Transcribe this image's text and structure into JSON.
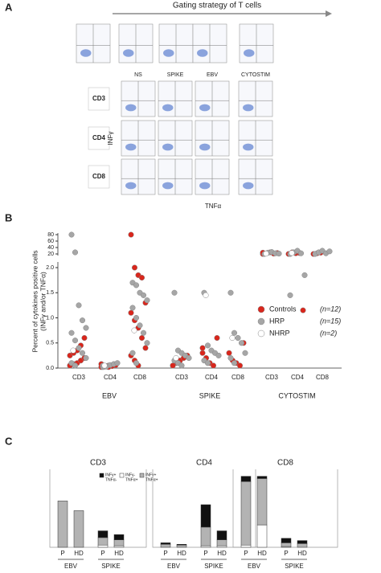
{
  "panel_labels": [
    "A",
    "B",
    "C"
  ],
  "panel_a": {
    "title": "Gating strategy of T cells",
    "columns": [
      "NS",
      "SPIKE",
      "EBV",
      "CYTOSTIM"
    ],
    "rows": [
      "CD3",
      "CD4",
      "CD8"
    ],
    "y_label": "INFγ",
    "x_label": "TNFα"
  },
  "bar_legend": [
    {
      "name": [
        "INFγ+",
        "TNFα-"
      ],
      "color": "#111111"
    },
    {
      "name": [
        "INFγ-",
        "TNFα+"
      ],
      "color": "#ffffff"
    },
    {
      "name": [
        "INFγ+",
        "TNFα+"
      ],
      "color": "#b3b3b3"
    }
  ],
  "chart_data": [
    {
      "type": "scatter",
      "y_label": [
        "Percent of cytokines positive cells",
        "(INFγ and/or TNFα)"
      ],
      "categories": [
        "CD3",
        "CD4",
        "CD8",
        "CD3",
        "CD4",
        "CD8",
        "CD3",
        "CD4",
        "CD8"
      ],
      "groups": [
        "EBV",
        "SPIKE",
        "CYTOSTIM"
      ],
      "ylim": [
        0,
        2.1
      ],
      "yticks": [
        {
          "value": 0,
          "label": "0.0"
        },
        {
          "value": 0.5,
          "label": "0.5"
        },
        {
          "value": 1,
          "label": "1.0"
        },
        {
          "value": 1.5,
          "label": "1.5"
        },
        {
          "value": 2,
          "label": "2.0"
        }
      ],
      "ylim_upper": [
        20,
        80
      ],
      "yticks_upper": [
        20,
        40,
        60,
        80
      ],
      "series": [
        {
          "name": "Controls",
          "n": "(n=12)",
          "color": "#d9261c",
          "values": [
            [
              0.05,
              0.08,
              0.1,
              0.15,
              0.2,
              0.25,
              0.3,
              0.35,
              0.45,
              0.6,
              0.05
            ],
            [
              0.02,
              0.03,
              0.05,
              0.04,
              0.06,
              0.08,
              0.03,
              0.02
            ],
            [
              80,
              2,
              1.85,
              1.8,
              1.3,
              1.1,
              0.95,
              0.8,
              0.6,
              0.4,
              0.25,
              0.15,
              0.05
            ],
            [
              0.05,
              0.1,
              0.15,
              0.2,
              0.25,
              0.05
            ],
            [
              0.3,
              0.2,
              0.1,
              0.05,
              0.6,
              0.4
            ],
            [
              0.3,
              0.15,
              0.1,
              0.05,
              0.5
            ],
            [
              20,
              22,
              25,
              21,
              23,
              24
            ],
            [
              20,
              25,
              22,
              23,
              1.15
            ],
            [
              20,
              22,
              24
            ]
          ]
        },
        {
          "name": "HRP",
          "n": "(n=15)",
          "color": "#a6a6a6",
          "values": [
            [
              80,
              25,
              1.25,
              0.95,
              0.8,
              0.7,
              0.55,
              0.4,
              0.3,
              0.2,
              0.1,
              0.05
            ],
            [
              0.02,
              0.04,
              0.06,
              0.08,
              0.1,
              0.05,
              0.03
            ],
            [
              1.7,
              1.65,
              1.5,
              1.45,
              1.35,
              1.2,
              1,
              0.85,
              0.7,
              0.5,
              0.3,
              0.1
            ],
            [
              1.5,
              0.35,
              0.3,
              0.25,
              0.2,
              0.15,
              0.1,
              0.05
            ],
            [
              1.5,
              0.45,
              0.35,
              0.3,
              0.25,
              0.15,
              0.1
            ],
            [
              1.5,
              0.7,
              0.6,
              0.5,
              0.3,
              0.2,
              0.1
            ],
            [
              20,
              24,
              26,
              22,
              21
            ],
            [
              20,
              25,
              30,
              22,
              1.85,
              1.45
            ],
            [
              20,
              25,
              30,
              22,
              28
            ]
          ]
        },
        {
          "name": "NHRP",
          "n": "(n=2)",
          "color": "#ffffff",
          "values": [
            [
              0.35
            ],
            [
              0.05
            ],
            [
              0.75
            ],
            [
              0.2
            ],
            [
              1.45
            ],
            [
              0.6
            ],
            [
              21
            ],
            [
              23
            ],
            []
          ]
        }
      ]
    },
    {
      "type": "bar",
      "stacked": true,
      "legend": true,
      "title": "CD3",
      "categories": [
        "P",
        "HD",
        "P",
        "HD"
      ],
      "groups": [
        "EBV",
        "SPIKE"
      ],
      "ylim": [
        0,
        1
      ],
      "stack_order": [
        1,
        2,
        0
      ],
      "series": [
        {
          "values": [
            0,
            0,
            0.09,
            0.07
          ]
        },
        {
          "values": [
            0,
            0,
            0.03,
            0.02
          ]
        },
        {
          "values": [
            0.62,
            0.49,
            0.1,
            0.08
          ]
        }
      ]
    },
    {
      "type": "bar",
      "stacked": true,
      "legend": false,
      "title": "CD4",
      "categories": [
        "P",
        "HD",
        "P",
        "HD"
      ],
      "groups": [
        "EBV",
        "SPIKE"
      ],
      "ylim": [
        0,
        1
      ],
      "stack_order": [
        1,
        2,
        0
      ],
      "series": [
        {
          "values": [
            0.02,
            0.01,
            0.3,
            0.12
          ]
        },
        {
          "values": [
            0,
            0,
            0.02,
            0.02
          ]
        },
        {
          "values": [
            0.04,
            0.03,
            0.25,
            0.08
          ]
        }
      ]
    },
    {
      "type": "bar",
      "stacked": true,
      "legend": false,
      "title": "CD8",
      "categories": [
        "P",
        "HD",
        "P",
        "HD"
      ],
      "groups": [
        "EBV",
        "SPIKE"
      ],
      "ylim": [
        0,
        1
      ],
      "stack_order": [
        1,
        2,
        0
      ],
      "series": [
        {
          "values": [
            0.07,
            0.03,
            0.06,
            0.04
          ]
        },
        {
          "values": [
            0.03,
            0.3,
            0.01,
            0
          ]
        },
        {
          "values": [
            0.85,
            0.62,
            0.05,
            0.05
          ]
        }
      ]
    }
  ]
}
